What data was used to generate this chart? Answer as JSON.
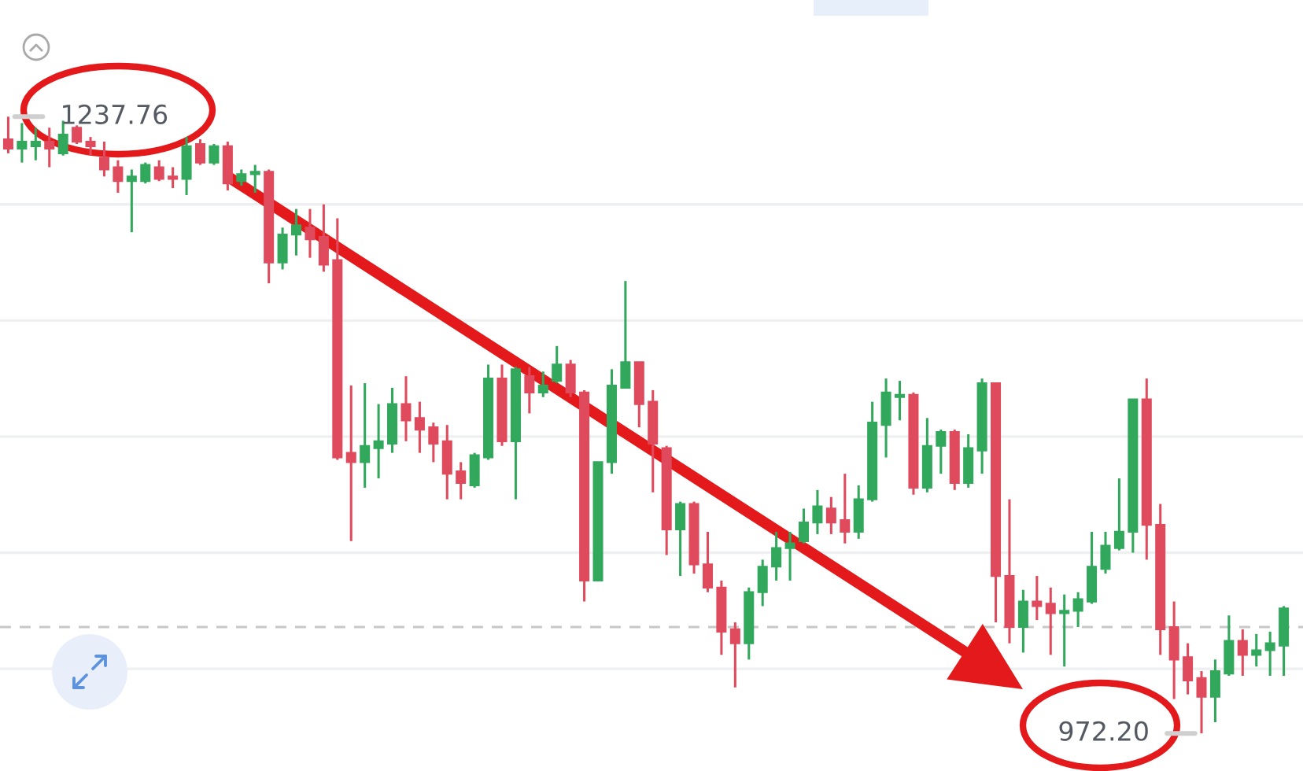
{
  "chart_data": {
    "type": "candlestick",
    "categories": [
      null,
      null,
      null,
      null,
      null,
      null,
      null,
      null,
      null,
      null,
      null,
      null,
      null,
      null,
      null,
      null,
      null,
      null,
      null,
      null,
      null,
      null,
      null,
      null,
      null,
      null,
      null,
      null,
      null,
      null,
      null,
      null,
      null,
      null,
      null,
      null,
      null,
      null,
      null,
      null,
      null,
      null,
      null,
      null,
      null,
      null,
      null,
      null,
      null,
      null,
      null,
      null,
      null,
      null,
      null,
      null,
      null,
      null,
      null,
      null,
      null,
      null,
      null,
      null,
      null,
      null,
      null,
      null,
      null,
      null,
      null,
      null,
      null,
      null,
      null,
      null,
      null,
      null,
      null,
      null,
      null,
      null,
      null,
      null,
      null,
      null,
      null,
      null,
      null,
      null,
      null,
      null,
      null,
      null
    ],
    "ohlc": [
      [
        1228,
        1237.76,
        1222,
        1224
      ],
      [
        1224,
        1235,
        1218,
        1227
      ],
      [
        1225,
        1233,
        1219,
        1227
      ],
      [
        1227,
        1233,
        1216,
        1224
      ],
      [
        1222,
        1236,
        1221,
        1230
      ],
      [
        1233,
        1234,
        1226,
        1227
      ],
      [
        1227,
        1229,
        1221,
        1225
      ],
      [
        1220,
        1227,
        1212,
        1215
      ],
      [
        1216,
        1219,
        1205,
        1210
      ],
      [
        1210,
        1215,
        1188,
        1212
      ],
      [
        1210,
        1218,
        1209,
        1217
      ],
      [
        1216,
        1219,
        1210,
        1211
      ],
      [
        1212,
        1216,
        1207,
        1211
      ],
      [
        1211,
        1229,
        1204,
        1225
      ],
      [
        1226,
        1228,
        1217,
        1218
      ],
      [
        1218,
        1226,
        1217,
        1225
      ],
      [
        1225,
        1227,
        1206,
        1209
      ],
      [
        1210,
        1215,
        1208,
        1213
      ],
      [
        1213,
        1217,
        1205,
        1214
      ],
      [
        1214,
        1215,
        1166,
        1175
      ],
      [
        1175,
        1190,
        1172,
        1187
      ],
      [
        1187,
        1198,
        1178,
        1191
      ],
      [
        1190,
        1198,
        1177,
        1185
      ],
      [
        1186,
        1200,
        1171,
        1174
      ],
      [
        1176,
        1194,
        1090,
        1091
      ],
      [
        1093,
        1122,
        1055,
        1089
      ],
      [
        1089,
        1123,
        1078,
        1096
      ],
      [
        1095,
        1114,
        1082,
        1098
      ],
      [
        1097,
        1121,
        1093,
        1114
      ],
      [
        1114,
        1126,
        1098,
        1107
      ],
      [
        1108,
        1115,
        1093,
        1103
      ],
      [
        1104,
        1106,
        1089,
        1097
      ],
      [
        1098,
        1105,
        1073,
        1084
      ],
      [
        1085,
        1089,
        1073,
        1080
      ],
      [
        1079,
        1093,
        1078,
        1092
      ],
      [
        1091,
        1131,
        1090,
        1125
      ],
      [
        1125,
        1131,
        1096,
        1098
      ],
      [
        1098,
        1130,
        1073,
        1129
      ],
      [
        1126,
        1130,
        1110,
        1119
      ],
      [
        1119,
        1128,
        1117,
        1122
      ],
      [
        1124,
        1139,
        1123,
        1131
      ],
      [
        1131,
        1133,
        1117,
        1119
      ],
      [
        1119,
        1120,
        1029,
        1038
      ],
      [
        1038,
        1089,
        1038,
        1089
      ],
      [
        1089,
        1129,
        1084,
        1122
      ],
      [
        1121,
        1167,
        1121,
        1132
      ],
      [
        1132,
        1132,
        1104,
        1114
      ],
      [
        1115,
        1120,
        1076,
        1097
      ],
      [
        1095,
        1096,
        1049,
        1060
      ],
      [
        1060,
        1072,
        1040,
        1071
      ],
      [
        1071,
        1072,
        1041,
        1045
      ],
      [
        1045,
        1059,
        1033,
        1035
      ],
      [
        1035,
        1038,
        1006,
        1016
      ],
      [
        1017,
        1020,
        992,
        1011
      ],
      [
        1011,
        1035,
        1004,
        1033
      ],
      [
        1033,
        1047,
        1027,
        1044
      ],
      [
        1044,
        1059,
        1038,
        1052
      ],
      [
        1052,
        1059,
        1038,
        1054
      ],
      [
        1055,
        1069,
        1054,
        1063
      ],
      [
        1063,
        1077,
        1058,
        1070
      ],
      [
        1069,
        1074,
        1058,
        1063
      ],
      [
        1064,
        1084,
        1054,
        1059
      ],
      [
        1059,
        1079,
        1056,
        1073
      ],
      [
        1073,
        1115,
        1072,
        1106
      ],
      [
        1105,
        1125,
        1091,
        1119
      ],
      [
        1117,
        1124,
        1107,
        1118
      ],
      [
        1118,
        1119,
        1075,
        1078
      ],
      [
        1078,
        1108,
        1076,
        1096
      ],
      [
        1096,
        1103,
        1084,
        1102
      ],
      [
        1102,
        1103,
        1077,
        1080
      ],
      [
        1080,
        1101,
        1078,
        1095
      ],
      [
        1094,
        1125,
        1084,
        1123
      ],
      [
        1123,
        1123,
        1020,
        1040
      ],
      [
        1040,
        1073,
        1011,
        1018
      ],
      [
        1018,
        1034,
        1007,
        1029
      ],
      [
        1029,
        1040,
        1021,
        1027
      ],
      [
        1028,
        1035,
        1006,
        1024
      ],
      [
        1024,
        1032,
        1001,
        1025
      ],
      [
        1025,
        1033,
        1018,
        1030
      ],
      [
        1029,
        1059,
        1028,
        1044
      ],
      [
        1043,
        1059,
        1041,
        1053
      ],
      [
        1052,
        1082,
        1051,
        1059
      ],
      [
        1059,
        1116,
        1050,
        1116
      ],
      [
        1116,
        1125,
        1047,
        1062
      ],
      [
        1062,
        1071,
        1006,
        1017
      ],
      [
        1018,
        1029,
        987,
        1004
      ],
      [
        1005,
        1011,
        989,
        995
      ],
      [
        996,
        999,
        972.2,
        988
      ],
      [
        988,
        1004,
        977,
        999
      ],
      [
        998,
        1023,
        997,
        1012
      ],
      [
        1012,
        1017,
        997,
        1006
      ],
      [
        1006,
        1015,
        1001,
        1008
      ],
      [
        1008,
        1016,
        997,
        1011
      ],
      [
        1010,
        1027,
        997,
        1026
      ]
    ],
    "colors": [
      "#e04a5d",
      "#31a85c",
      "#31a85c",
      "#e04a5d",
      "#31a85c",
      "#e04a5d",
      "#e04a5d",
      "#e04a5d",
      "#e04a5d",
      "#31a85c",
      "#31a85c",
      "#e04a5d",
      "#e04a5d",
      "#31a85c",
      "#e04a5d",
      "#31a85c",
      "#e04a5d",
      "#31a85c",
      "#31a85c",
      "#e04a5d",
      "#31a85c",
      "#31a85c",
      "#e04a5d",
      "#e04a5d",
      "#e04a5d",
      "#e04a5d",
      "#31a85c",
      "#31a85c",
      "#31a85c",
      "#e04a5d",
      "#e04a5d",
      "#e04a5d",
      "#e04a5d",
      "#e04a5d",
      "#31a85c",
      "#31a85c",
      "#e04a5d",
      "#31a85c",
      "#e04a5d",
      "#31a85c",
      "#31a85c",
      "#e04a5d",
      "#e04a5d",
      "#31a85c",
      "#31a85c",
      "#31a85c",
      "#e04a5d",
      "#e04a5d",
      "#e04a5d",
      "#31a85c",
      "#e04a5d",
      "#e04a5d",
      "#e04a5d",
      "#e04a5d",
      "#31a85c",
      "#31a85c",
      "#31a85c",
      "#31a85c",
      "#31a85c",
      "#31a85c",
      "#e04a5d",
      "#e04a5d",
      "#31a85c",
      "#31a85c",
      "#31a85c",
      "#31a85c",
      "#e04a5d",
      "#31a85c",
      "#31a85c",
      "#e04a5d",
      "#31a85c",
      "#31a85c",
      "#e04a5d",
      "#e04a5d",
      "#31a85c",
      "#e04a5d",
      "#e04a5d",
      "#31a85c",
      "#31a85c",
      "#31a85c",
      "#31a85c",
      "#31a85c",
      "#31a85c",
      "#e04a5d",
      "#e04a5d",
      "#e04a5d",
      "#e04a5d",
      "#e04a5d",
      "#31a85c",
      "#31a85c",
      "#e04a5d",
      "#31a85c",
      "#31a85c",
      "#31a85c"
    ],
    "ylim": [
      956,
      1288
    ],
    "yticks": [
      {
        "value": 1000,
        "label": null
      },
      {
        "value": 1050,
        "label": null
      },
      {
        "value": 1100,
        "label": null
      },
      {
        "value": 1150,
        "label": null
      },
      {
        "value": 1200,
        "label": null
      }
    ],
    "grid": "y",
    "ref_lines": [
      {
        "axis": "y",
        "value": 1018,
        "line_style": "dashed",
        "color": "#c8c8c8"
      }
    ],
    "annotations": [
      "1237.76",
      "972.20"
    ]
  }
}
